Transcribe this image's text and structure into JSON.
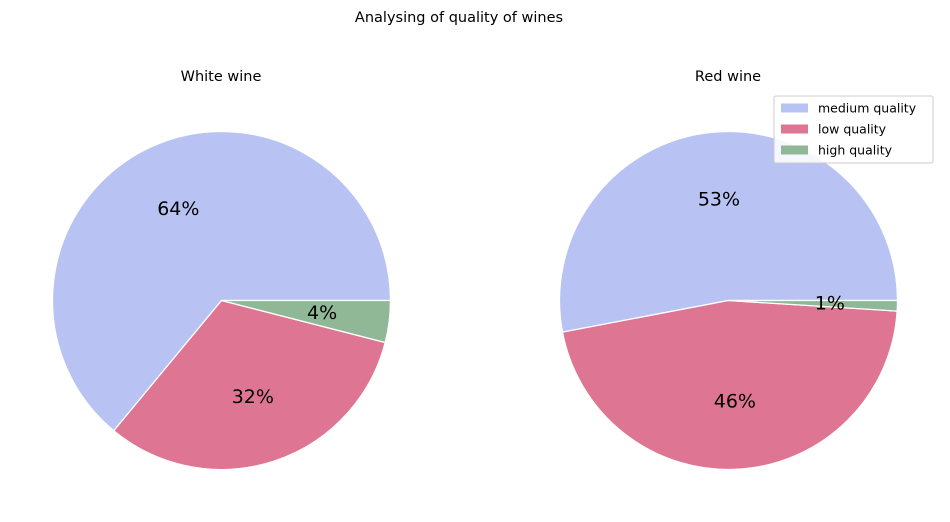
{
  "figure": {
    "title": "Analysing of quality of wines"
  },
  "chart_data": [
    {
      "type": "pie",
      "title": "White wine",
      "labels": [
        "medium quality",
        "low quality",
        "high quality"
      ],
      "values": [
        64,
        32,
        4
      ],
      "display_labels": [
        "64%",
        "32%",
        "4%"
      ],
      "colors": [
        "#b8c3f3",
        "#de7592",
        "#90b897"
      ],
      "legend": false
    },
    {
      "type": "pie",
      "title": "Red wine",
      "labels": [
        "medium quality",
        "low quality",
        "high quality"
      ],
      "values": [
        53,
        46,
        1
      ],
      "display_labels": [
        "53%",
        "46%",
        "1%"
      ],
      "colors": [
        "#b8c3f3",
        "#de7592",
        "#90b897"
      ],
      "legend": true,
      "legend_position": "upper-right"
    }
  ]
}
